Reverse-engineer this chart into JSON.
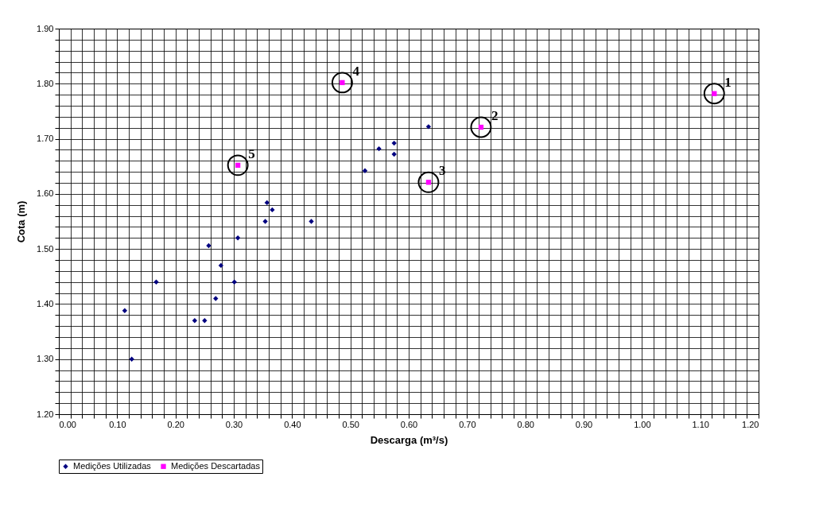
{
  "chart_data": {
    "type": "scatter",
    "xlabel": "Descarga (m³/s)",
    "ylabel": "Cota (m)",
    "xlim": [
      0,
      1.2
    ],
    "ylim": [
      1.2,
      1.9
    ],
    "xticks": [
      {
        "value": 0,
        "label": "0.00"
      },
      {
        "value": 0.02,
        "label": null
      },
      {
        "value": 0.04,
        "label": null
      },
      {
        "value": 0.06,
        "label": null
      },
      {
        "value": 0.08,
        "label": null
      },
      {
        "value": 0.1,
        "label": "0.10"
      },
      {
        "value": 0.12,
        "label": null
      },
      {
        "value": 0.14,
        "label": null
      },
      {
        "value": 0.16,
        "label": null
      },
      {
        "value": 0.18,
        "label": null
      },
      {
        "value": 0.2,
        "label": "0.20"
      },
      {
        "value": 0.22,
        "label": null
      },
      {
        "value": 0.24,
        "label": null
      },
      {
        "value": 0.26,
        "label": null
      },
      {
        "value": 0.28,
        "label": null
      },
      {
        "value": 0.3,
        "label": "0.30"
      },
      {
        "value": 0.32,
        "label": null
      },
      {
        "value": 0.34,
        "label": null
      },
      {
        "value": 0.36,
        "label": null
      },
      {
        "value": 0.38,
        "label": null
      },
      {
        "value": 0.4,
        "label": "0.40"
      },
      {
        "value": 0.42,
        "label": null
      },
      {
        "value": 0.44,
        "label": null
      },
      {
        "value": 0.46,
        "label": null
      },
      {
        "value": 0.48,
        "label": null
      },
      {
        "value": 0.5,
        "label": "0.50"
      },
      {
        "value": 0.52,
        "label": null
      },
      {
        "value": 0.54,
        "label": null
      },
      {
        "value": 0.56,
        "label": null
      },
      {
        "value": 0.58,
        "label": null
      },
      {
        "value": 0.6,
        "label": "0.60"
      },
      {
        "value": 0.62,
        "label": null
      },
      {
        "value": 0.64,
        "label": null
      },
      {
        "value": 0.66,
        "label": null
      },
      {
        "value": 0.68,
        "label": null
      },
      {
        "value": 0.7,
        "label": "0.70"
      },
      {
        "value": 0.72,
        "label": null
      },
      {
        "value": 0.74,
        "label": null
      },
      {
        "value": 0.76,
        "label": null
      },
      {
        "value": 0.78,
        "label": null
      },
      {
        "value": 0.8,
        "label": "0.80"
      },
      {
        "value": 0.82,
        "label": null
      },
      {
        "value": 0.84,
        "label": null
      },
      {
        "value": 0.86,
        "label": null
      },
      {
        "value": 0.88,
        "label": null
      },
      {
        "value": 0.9,
        "label": "0.90"
      },
      {
        "value": 0.92,
        "label": null
      },
      {
        "value": 0.94,
        "label": null
      },
      {
        "value": 0.96,
        "label": null
      },
      {
        "value": 0.98,
        "label": null
      },
      {
        "value": 1.0,
        "label": "1.00"
      },
      {
        "value": 1.02,
        "label": null
      },
      {
        "value": 1.04,
        "label": null
      },
      {
        "value": 1.06,
        "label": null
      },
      {
        "value": 1.08,
        "label": null
      },
      {
        "value": 1.1,
        "label": "1.10"
      },
      {
        "value": 1.12,
        "label": null
      },
      {
        "value": 1.14,
        "label": null
      },
      {
        "value": 1.16,
        "label": null
      },
      {
        "value": 1.18,
        "label": null
      },
      {
        "value": 1.2,
        "label": "1.20"
      }
    ],
    "yticks": [
      {
        "value": 1.2,
        "label": "1.20"
      },
      {
        "value": 1.22,
        "label": null
      },
      {
        "value": 1.24,
        "label": null
      },
      {
        "value": 1.26,
        "label": null
      },
      {
        "value": 1.28,
        "label": null
      },
      {
        "value": 1.3,
        "label": "1.30"
      },
      {
        "value": 1.32,
        "label": null
      },
      {
        "value": 1.34,
        "label": null
      },
      {
        "value": 1.36,
        "label": null
      },
      {
        "value": 1.38,
        "label": null
      },
      {
        "value": 1.4,
        "label": "1.40"
      },
      {
        "value": 1.42,
        "label": null
      },
      {
        "value": 1.44,
        "label": null
      },
      {
        "value": 1.46,
        "label": null
      },
      {
        "value": 1.48,
        "label": null
      },
      {
        "value": 1.5,
        "label": "1.50"
      },
      {
        "value": 1.52,
        "label": null
      },
      {
        "value": 1.54,
        "label": null
      },
      {
        "value": 1.56,
        "label": null
      },
      {
        "value": 1.58,
        "label": null
      },
      {
        "value": 1.6,
        "label": "1.60"
      },
      {
        "value": 1.62,
        "label": null
      },
      {
        "value": 1.64,
        "label": null
      },
      {
        "value": 1.66,
        "label": null
      },
      {
        "value": 1.68,
        "label": null
      },
      {
        "value": 1.7,
        "label": "1.70"
      },
      {
        "value": 1.72,
        "label": null
      },
      {
        "value": 1.74,
        "label": null
      },
      {
        "value": 1.76,
        "label": null
      },
      {
        "value": 1.78,
        "label": null
      },
      {
        "value": 1.8,
        "label": "1.80"
      },
      {
        "value": 1.82,
        "label": null
      },
      {
        "value": 1.84,
        "label": null
      },
      {
        "value": 1.86,
        "label": null
      },
      {
        "value": 1.88,
        "label": null
      },
      {
        "value": 1.9,
        "label": "1.90"
      }
    ],
    "grid": true,
    "legend": "bottom",
    "series": [
      {
        "name": "Medições Utilizadas",
        "color": "#000080",
        "marker": "diamond",
        "x": [
          0.113,
          0.125,
          0.167,
          0.233,
          0.25,
          0.269,
          0.257,
          0.278,
          0.301,
          0.307,
          0.354,
          0.357,
          0.366,
          0.433,
          0.525,
          0.549,
          0.575,
          0.575,
          0.634
        ],
        "values": [
          1.388,
          1.3,
          1.44,
          1.37,
          1.37,
          1.41,
          1.506,
          1.47,
          1.44,
          1.52,
          1.55,
          1.584,
          1.571,
          1.55,
          1.642,
          1.682,
          1.692,
          1.672,
          1.722
        ]
      },
      {
        "name": "Medições Descartadas",
        "color": "#ff00ff",
        "marker": "square",
        "x": [
          1.124,
          0.724,
          0.634,
          0.486,
          0.307
        ],
        "values": [
          1.782,
          1.721,
          1.621,
          1.802,
          1.652
        ]
      }
    ],
    "annotations": [
      {
        "text": "1",
        "x": 1.124,
        "y": 1.782
      },
      {
        "text": "2",
        "x": 0.724,
        "y": 1.721
      },
      {
        "text": "3",
        "x": 0.634,
        "y": 1.621
      },
      {
        "text": "4",
        "x": 0.486,
        "y": 1.802
      },
      {
        "text": "5",
        "x": 0.307,
        "y": 1.652
      }
    ]
  }
}
